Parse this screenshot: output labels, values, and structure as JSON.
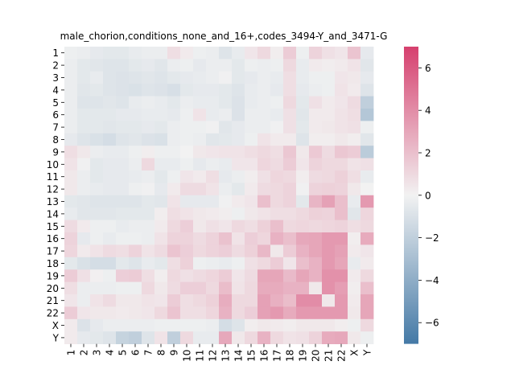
{
  "chart_data": {
    "type": "heatmap",
    "title": "male_chorion,conditions_none_and_16+,codes_3494-Y_and_3471-G",
    "xlabel": "",
    "ylabel": "",
    "row_labels": [
      "1",
      "2",
      "3",
      "4",
      "5",
      "6",
      "7",
      "8",
      "9",
      "10",
      "11",
      "12",
      "13",
      "14",
      "15",
      "16",
      "17",
      "18",
      "19",
      "20",
      "21",
      "22",
      "X",
      "Y"
    ],
    "col_labels": [
      "1",
      "2",
      "3",
      "4",
      "5",
      "6",
      "7",
      "8",
      "9",
      "10",
      "11",
      "12",
      "13",
      "14",
      "15",
      "16",
      "17",
      "18",
      "19",
      "20",
      "21",
      "22",
      "X",
      "Y"
    ],
    "color_range": [
      -7,
      7
    ],
    "colorbar_ticks": [
      -6,
      -4,
      -2,
      0,
      2,
      4,
      6
    ],
    "colorbar_tick_labels": [
      "−6",
      "−4",
      "−2",
      "0",
      "2",
      "4",
      "6"
    ],
    "colormap": {
      "low": "#4479a6",
      "mid": "#f2f2f2",
      "high": "#d6406e"
    },
    "values": [
      [
        -0.2,
        -0.3,
        -0.5,
        -0.6,
        -0.6,
        -0.4,
        -0.3,
        -0.3,
        0.8,
        0.3,
        -0.2,
        -0.3,
        -0.8,
        -0.4,
        0.5,
        1.0,
        0.2,
        1.5,
        -0.2,
        1.2,
        0.7,
        0.5,
        1.8,
        -0.5
      ],
      [
        -0.3,
        -0.6,
        -0.7,
        -0.8,
        -0.8,
        -0.6,
        -0.5,
        -0.7,
        -0.3,
        -0.2,
        -0.5,
        -0.3,
        -0.3,
        -0.6,
        -0.2,
        -0.3,
        -0.2,
        1.0,
        -0.4,
        0.3,
        0.2,
        0.3,
        0.6,
        -0.7
      ],
      [
        -0.3,
        -0.6,
        -0.4,
        -0.8,
        -0.9,
        -0.8,
        -0.7,
        -0.8,
        -0.6,
        -0.5,
        -0.4,
        -0.3,
        -0.1,
        -0.6,
        -0.5,
        -0.3,
        -0.4,
        0.8,
        -0.4,
        -0.2,
        -0.2,
        0.5,
        0.4,
        -0.5
      ],
      [
        -0.3,
        -0.7,
        -0.6,
        -0.8,
        -0.9,
        -1.0,
        -0.8,
        -0.9,
        -1.1,
        -0.6,
        -0.5,
        -0.5,
        -0.6,
        -0.8,
        -0.4,
        -0.3,
        -0.5,
        0.8,
        -0.5,
        -0.3,
        -0.2,
        0.6,
        0.3,
        -0.8
      ],
      [
        -0.3,
        -0.8,
        -0.8,
        -0.7,
        -0.8,
        -0.4,
        -0.3,
        -0.4,
        -0.6,
        -0.3,
        -0.4,
        -0.4,
        -0.6,
        -0.9,
        -0.4,
        -0.3,
        -0.2,
        1.0,
        -0.6,
        0.7,
        0.3,
        0.5,
        0.9,
        -2.0
      ],
      [
        -0.3,
        -0.6,
        -0.6,
        -0.6,
        -0.5,
        -0.5,
        -0.4,
        -0.4,
        -0.5,
        -0.2,
        0.6,
        -0.4,
        -0.3,
        -0.9,
        -0.3,
        -0.3,
        -0.4,
        0.7,
        -0.7,
        0.3,
        0.3,
        0.6,
        0.8,
        -2.5
      ],
      [
        -0.3,
        -0.6,
        -0.6,
        -0.7,
        -0.6,
        -0.6,
        -0.5,
        -0.6,
        -0.3,
        -0.2,
        -0.2,
        -0.1,
        -0.7,
        -0.5,
        -0.3,
        -0.3,
        -0.1,
        0.7,
        -0.6,
        0.3,
        0.4,
        0.6,
        0.7,
        -0.2
      ],
      [
        -0.5,
        -0.8,
        -1.0,
        -1.2,
        -0.8,
        -0.7,
        -0.9,
        -1.0,
        -0.3,
        -0.2,
        -0.3,
        -0.7,
        -0.6,
        -0.5,
        -0.2,
        0.6,
        0.3,
        0.3,
        -0.8,
        0.2,
        0.2,
        0.4,
        0.2,
        -0.7
      ],
      [
        0.8,
        0.4,
        -0.3,
        -0.4,
        -0.4,
        -0.2,
        0.2,
        -0.2,
        -0.2,
        0.0,
        0.4,
        0.5,
        0.6,
        0.6,
        0.8,
        1.0,
        0.8,
        1.7,
        0.4,
        1.6,
        0.9,
        1.7,
        1.5,
        -2.2
      ],
      [
        0.6,
        -0.1,
        -0.6,
        -0.5,
        -0.5,
        -0.3,
        1.0,
        -0.4,
        -0.4,
        -0.2,
        -0.5,
        -0.3,
        -0.4,
        0.5,
        0.5,
        1.1,
        0.9,
        1.5,
        0.5,
        1.2,
        1.0,
        1.0,
        0.6,
        0.7
      ],
      [
        0.4,
        -0.3,
        -0.6,
        -0.5,
        -0.5,
        -0.4,
        -0.3,
        -0.6,
        -0.2,
        0.5,
        0.3,
        0.8,
        -0.5,
        -0.3,
        0.2,
        0.7,
        1.1,
        1.0,
        0.2,
        0.9,
        1.0,
        1.3,
        0.8,
        -0.4
      ],
      [
        0.4,
        -0.3,
        -0.4,
        -0.5,
        -0.5,
        -0.2,
        -0.1,
        -0.5,
        0.3,
        0.9,
        0.9,
        0.6,
        -0.3,
        -0.6,
        0.3,
        0.9,
        1.0,
        1.2,
        -0.1,
        1.2,
        1.3,
        1.2,
        0.4,
        0.0
      ],
      [
        -0.6,
        -0.7,
        -0.8,
        -0.8,
        -0.8,
        -0.8,
        -0.6,
        -0.7,
        0.6,
        -0.5,
        -0.5,
        -0.5,
        -0.1,
        0.3,
        0.5,
        2.0,
        1.0,
        1.2,
        -0.6,
        2.4,
        3.2,
        2.0,
        -0.4,
        3.5
      ],
      [
        -0.4,
        -0.7,
        -0.7,
        -0.7,
        -0.6,
        -0.6,
        -0.6,
        0.2,
        0.8,
        0.6,
        0.4,
        0.3,
        0.2,
        -0.2,
        0.4,
        0.6,
        0.8,
        0.8,
        1.0,
        1.3,
        1.2,
        2.0,
        -0.7,
        1.1
      ],
      [
        0.9,
        0.3,
        -0.2,
        -0.2,
        -0.4,
        -0.3,
        -0.3,
        0.3,
        1.0,
        1.4,
        0.4,
        0.7,
        0.5,
        1.0,
        0.8,
        1.3,
        2.0,
        1.0,
        1.1,
        1.0,
        1.1,
        1.2,
        0.8,
        1.0
      ],
      [
        1.2,
        -0.5,
        -0.2,
        -0.4,
        -0.2,
        -0.2,
        -0.3,
        0.6,
        1.2,
        1.2,
        0.9,
        1.2,
        1.9,
        0.6,
        1.4,
        1.1,
        2.5,
        2.0,
        2.9,
        3.0,
        3.5,
        3.5,
        0.2,
        2.8
      ],
      [
        1.1,
        0.3,
        0.6,
        0.9,
        0.8,
        1.2,
        0.6,
        0.9,
        1.8,
        1.4,
        1.0,
        1.2,
        1.4,
        0.9,
        1.3,
        2.3,
        0.4,
        1.5,
        2.5,
        3.0,
        3.5,
        3.2,
        0.3,
        0.5
      ],
      [
        -0.6,
        -1.0,
        -1.2,
        -1.2,
        -0.6,
        -0.8,
        -0.4,
        -0.6,
        0.8,
        1.3,
        -0.2,
        -0.3,
        -0.4,
        -0.2,
        0.7,
        1.0,
        1.5,
        0.5,
        2.0,
        2.5,
        3.5,
        3.0,
        -0.4,
        0.3
      ],
      [
        1.5,
        0.7,
        0.1,
        -0.2,
        1.4,
        1.5,
        0.8,
        0.2,
        1.0,
        0.7,
        0.9,
        1.1,
        1.5,
        0.5,
        0.9,
        3.0,
        3.0,
        2.2,
        3.0,
        2.5,
        3.8,
        3.8,
        0.3,
        1.0
      ],
      [
        0.8,
        -0.3,
        -0.3,
        -0.3,
        -0.2,
        -0.2,
        1.0,
        0.4,
        0.9,
        1.4,
        1.4,
        1.0,
        2.1,
        0.6,
        1.0,
        2.8,
        2.8,
        2.5,
        2.5,
        0.4,
        3.8,
        3.3,
        0.2,
        2.0
      ],
      [
        0.5,
        -0.3,
        0.6,
        0.9,
        0.4,
        0.4,
        0.6,
        0.5,
        1.5,
        0.8,
        1.0,
        1.3,
        2.7,
        1.0,
        1.0,
        3.2,
        2.6,
        2.1,
        4.0,
        4.0,
        0.4,
        3.5,
        0.3,
        3.0
      ],
      [
        1.5,
        0.5,
        0.4,
        0.4,
        0.3,
        0.4,
        0.5,
        1.0,
        1.8,
        0.8,
        0.8,
        1.1,
        2.5,
        1.0,
        1.4,
        3.2,
        3.5,
        2.8,
        3.5,
        3.5,
        3.5,
        3.5,
        0.4,
        3.0
      ],
      [
        0.3,
        -0.9,
        -0.5,
        -0.3,
        -0.3,
        -0.3,
        -0.3,
        -0.2,
        -0.2,
        -0.2,
        -0.2,
        -0.3,
        -1.2,
        -0.8,
        0.2,
        0.4,
        0.3,
        0.2,
        0.4,
        0.4,
        0.4,
        0.2,
        -0.2,
        1.0
      ],
      [
        0.3,
        -0.5,
        -0.6,
        -0.8,
        -1.8,
        -2.0,
        -0.8,
        0.6,
        -2.0,
        1.0,
        -0.4,
        -0.4,
        2.9,
        0.4,
        1.0,
        2.5,
        1.0,
        0.6,
        0.7,
        1.2,
        2.8,
        2.9,
        0.4,
        -0.2
      ]
    ]
  }
}
